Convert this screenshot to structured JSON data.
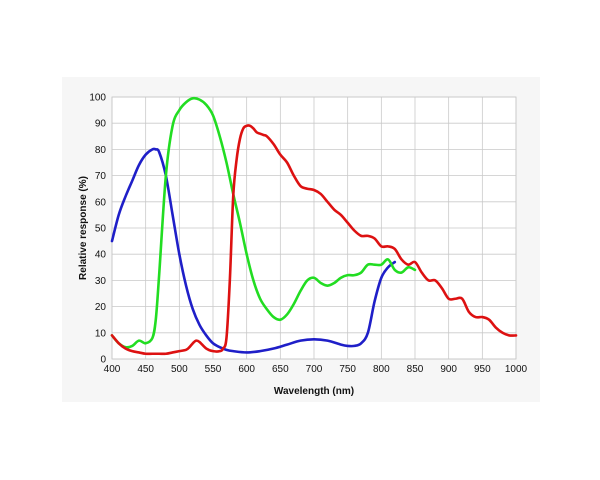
{
  "chart_data": {
    "type": "line",
    "title": "",
    "xlabel": "Wavelength (nm)",
    "ylabel": "Relative response (%)",
    "xlim": [
      400,
      1000
    ],
    "ylim": [
      0,
      100
    ],
    "grid": true,
    "x_ticks": [
      400,
      450,
      500,
      550,
      600,
      650,
      700,
      750,
      800,
      850,
      900,
      950,
      1000
    ],
    "y_ticks": [
      0,
      10,
      20,
      30,
      40,
      50,
      60,
      70,
      80,
      90,
      100
    ],
    "series": [
      {
        "color": "#1f1fc8",
        "x": [
          400,
          410,
          420,
          430,
          440,
          450,
          460,
          465,
          470,
          480,
          490,
          500,
          510,
          520,
          530,
          540,
          550,
          560,
          570,
          580,
          600,
          620,
          640,
          660,
          680,
          700,
          720,
          740,
          750,
          760,
          770,
          780,
          790,
          800,
          810,
          820
        ],
        "y": [
          45,
          55,
          62,
          68,
          74,
          78,
          80,
          80,
          79,
          70,
          55,
          40,
          28,
          19,
          13,
          9,
          6,
          4.5,
          3.5,
          3,
          2.5,
          3,
          4,
          5.5,
          7,
          7.5,
          7,
          5.5,
          5,
          5,
          6,
          10,
          22,
          31,
          35,
          37
        ]
      },
      {
        "color": "#22dd22",
        "x": [
          400,
          410,
          420,
          430,
          440,
          450,
          460,
          465,
          470,
          480,
          490,
          500,
          510,
          520,
          530,
          540,
          550,
          560,
          570,
          580,
          590,
          600,
          610,
          620,
          630,
          640,
          650,
          660,
          670,
          680,
          690,
          700,
          710,
          720,
          730,
          740,
          750,
          760,
          770,
          780,
          790,
          800,
          810,
          820,
          830,
          840,
          850
        ],
        "y": [
          9,
          6,
          4.5,
          5,
          7,
          6,
          8,
          15,
          32,
          70,
          89,
          95,
          98,
          99.5,
          99,
          97,
          93,
          85,
          75,
          63,
          52,
          40,
          30,
          23,
          19,
          16,
          15,
          17,
          21,
          26,
          30,
          31,
          29,
          28,
          29,
          31,
          32,
          32,
          33,
          36,
          36,
          36,
          38,
          34,
          33,
          35,
          34
        ]
      },
      {
        "color": "#dd1111",
        "x": [
          400,
          410,
          420,
          430,
          440,
          450,
          460,
          470,
          480,
          490,
          500,
          510,
          515,
          520,
          525,
          530,
          540,
          550,
          560,
          565,
          570,
          575,
          580,
          585,
          590,
          595,
          600,
          605,
          610,
          615,
          620,
          625,
          630,
          640,
          650,
          660,
          670,
          680,
          690,
          700,
          710,
          720,
          730,
          740,
          750,
          760,
          770,
          780,
          790,
          800,
          810,
          820,
          830,
          840,
          850,
          860,
          870,
          880,
          890,
          900,
          910,
          920,
          930,
          940,
          950,
          960,
          970,
          980,
          990,
          1000
        ],
        "y": [
          9,
          6,
          4,
          3,
          2.5,
          2,
          2,
          2,
          2,
          2.5,
          3,
          3.5,
          4.5,
          6,
          7,
          6.5,
          4,
          3,
          3,
          4,
          8,
          30,
          62,
          76,
          84,
          88,
          89,
          89,
          88,
          86.5,
          86,
          85.5,
          85,
          82,
          78,
          75,
          70,
          66,
          65,
          64.5,
          63,
          60,
          57,
          55,
          52,
          49,
          47,
          47,
          46,
          43,
          43,
          42,
          38,
          36,
          37,
          33,
          30,
          30,
          27,
          23,
          23,
          23,
          18,
          16,
          16,
          15,
          12,
          10,
          9,
          9
        ]
      }
    ]
  }
}
